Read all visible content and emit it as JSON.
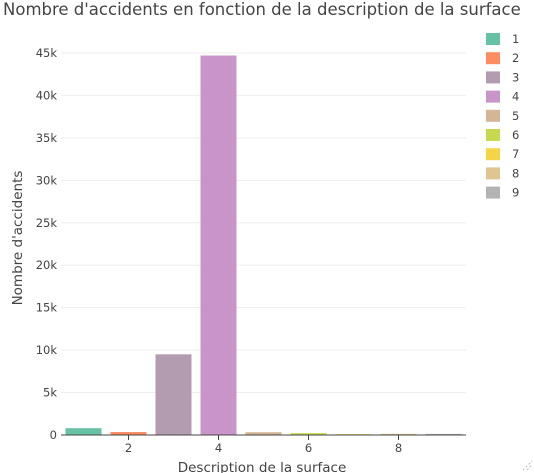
{
  "chart_data": {
    "type": "bar",
    "title": "Nombre d'accidents en fonction de la description de la surface",
    "xlabel": "Description de la surface",
    "ylabel": "Nombre d'accidents",
    "x_tick_labels": [
      "2",
      "4",
      "6",
      "8"
    ],
    "x_tick_values": [
      2,
      4,
      6,
      8
    ],
    "y_tick_labels": [
      "0",
      "5k",
      "10k",
      "15k",
      "20k",
      "25k",
      "30k",
      "35k",
      "40k",
      "45k"
    ],
    "y_tick_values": [
      0,
      5000,
      10000,
      15000,
      20000,
      25000,
      30000,
      35000,
      40000,
      45000
    ],
    "ylim": [
      0,
      47000
    ],
    "xlim": [
      0.5,
      9.5
    ],
    "grid": true,
    "legend_position": "right",
    "series": [
      {
        "name": "1",
        "x": 1,
        "value": 800,
        "color": "#66c2a5"
      },
      {
        "name": "2",
        "x": 2,
        "value": 350,
        "color": "#fc8d62"
      },
      {
        "name": "3",
        "x": 3,
        "value": 9500,
        "color": "#b39bb0"
      },
      {
        "name": "4",
        "x": 4,
        "value": 44700,
        "color": "#c994c7"
      },
      {
        "name": "5",
        "x": 5,
        "value": 330,
        "color": "#d4b596"
      },
      {
        "name": "6",
        "x": 6,
        "value": 220,
        "color": "#c8d94f"
      },
      {
        "name": "7",
        "x": 7,
        "value": 100,
        "color": "#f5d547"
      },
      {
        "name": "8",
        "x": 8,
        "value": 140,
        "color": "#e0c590"
      },
      {
        "name": "9",
        "x": 9,
        "value": 130,
        "color": "#b3b3b3"
      }
    ]
  }
}
